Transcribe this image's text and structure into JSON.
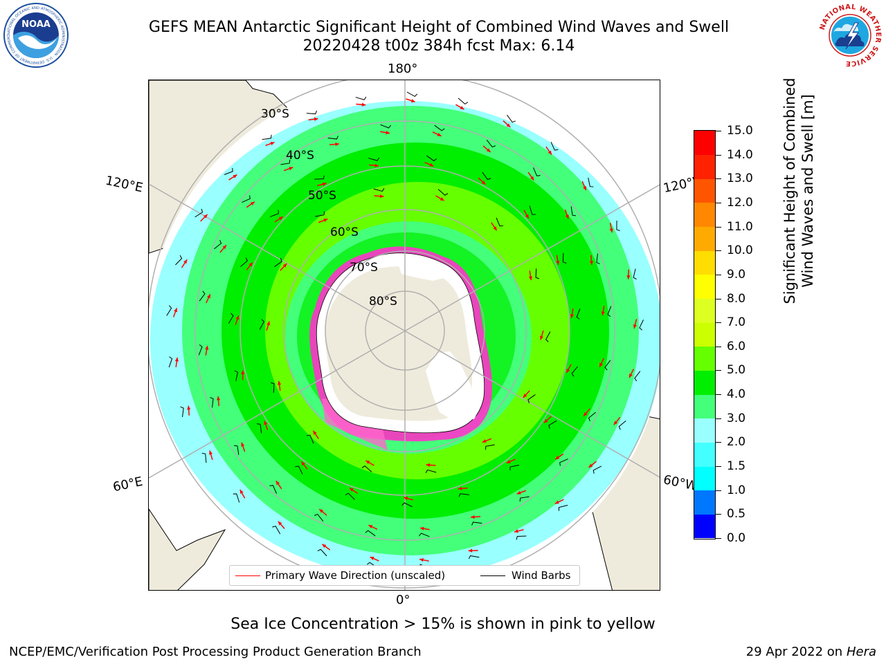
{
  "header": {
    "title_line1": "GEFS MEAN Antarctic Significant Height of Combined Wind Waves and Swell",
    "title_line2": "20220428 t00z 384h fcst   Max: 6.14"
  },
  "logos": {
    "noaa_text": "NOAA",
    "noaa_ring_text": "NATIONAL OCEANIC AND ATMOSPHERIC ADMINISTRATION · U.S. DEPARTMENT OF COMMERCE",
    "nws_ring_text": "NATIONAL WEATHER SERVICE"
  },
  "map": {
    "longitude_labels": {
      "top": "180°",
      "bottom": "0°",
      "upper_left": "120°E",
      "upper_right": "120°W",
      "lower_left": "60°E",
      "lower_right": "60°W"
    },
    "latitude_labels": [
      "30°S",
      "40°S",
      "50°S",
      "60°S",
      "70°S",
      "80°S"
    ]
  },
  "colorbar": {
    "title_line1": "Significant Height of Combined",
    "title_line2": "Wind Waves and Swell [m]",
    "tick_labels": [
      "0.0",
      "0.5",
      "1.0",
      "1.5",
      "2.0",
      "3.0",
      "4.0",
      "5.0",
      "6.0",
      "7.0",
      "8.0",
      "9.0",
      "10.0",
      "11.0",
      "12.0",
      "13.0",
      "14.0",
      "15.0"
    ],
    "colors": [
      "#0000ff",
      "#0077ff",
      "#00ffff",
      "#44ffff",
      "#99ffff",
      "#44ff7a",
      "#00ee00",
      "#66ff00",
      "#ccff00",
      "#ddff22",
      "#ffff00",
      "#ffdd00",
      "#ffaa00",
      "#ff8800",
      "#ff5500",
      "#ff2200",
      "#ff0000"
    ]
  },
  "legend": {
    "wave_label": "Primary Wave Direction (unscaled)",
    "wave_color": "#ff0000",
    "barb_label": "Wind Barbs",
    "barb_color": "#000000"
  },
  "note": "Sea Ice Concentration > 15% is shown in pink to yellow",
  "footer": {
    "left": "NCEP/EMC/Verification Post Processing Product Generation Branch",
    "right_date": "29 Apr 2022 on ",
    "right_host": "Hera"
  }
}
